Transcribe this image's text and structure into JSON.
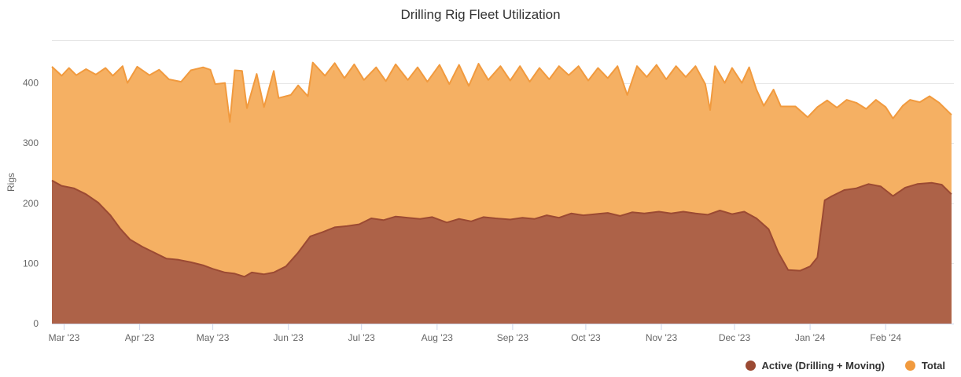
{
  "chart_data": {
    "type": "area",
    "title": "Drilling Rig Fleet Utilization",
    "ylabel": "Rigs",
    "xlabel": "",
    "ylim": [
      0,
      470
    ],
    "yticks": [
      0,
      100,
      200,
      300,
      400
    ],
    "xlim": [
      "2023-02-24",
      "2024-02-29"
    ],
    "xticks": [
      {
        "date": "2023-03-01",
        "label": "Mar '23"
      },
      {
        "date": "2023-04-01",
        "label": "Apr '23"
      },
      {
        "date": "2023-05-01",
        "label": "May '23"
      },
      {
        "date": "2023-06-01",
        "label": "Jun '23"
      },
      {
        "date": "2023-07-01",
        "label": "Jul '23"
      },
      {
        "date": "2023-08-01",
        "label": "Aug '23"
      },
      {
        "date": "2023-09-01",
        "label": "Sep '23"
      },
      {
        "date": "2023-10-01",
        "label": "Oct '23"
      },
      {
        "date": "2023-11-01",
        "label": "Nov '23"
      },
      {
        "date": "2023-12-01",
        "label": "Dec '23"
      },
      {
        "date": "2024-01-01",
        "label": "Jan '24"
      },
      {
        "date": "2024-02-01",
        "label": "Feb '24"
      }
    ],
    "grid": true,
    "legend_position": "bottom-right",
    "series": [
      {
        "name": "Total",
        "color": "#f19a3e",
        "points": [
          [
            "2023-02-24",
            427
          ],
          [
            "2023-02-28",
            412
          ],
          [
            "2023-03-03",
            425
          ],
          [
            "2023-03-06",
            413
          ],
          [
            "2023-03-10",
            423
          ],
          [
            "2023-03-14",
            414
          ],
          [
            "2023-03-18",
            425
          ],
          [
            "2023-03-21",
            412
          ],
          [
            "2023-03-25",
            428
          ],
          [
            "2023-03-27",
            400
          ],
          [
            "2023-03-31",
            427
          ],
          [
            "2023-04-05",
            413
          ],
          [
            "2023-04-09",
            422
          ],
          [
            "2023-04-13",
            406
          ],
          [
            "2023-04-18",
            402
          ],
          [
            "2023-04-22",
            421
          ],
          [
            "2023-04-27",
            426
          ],
          [
            "2023-04-30",
            422
          ],
          [
            "2023-05-02",
            398
          ],
          [
            "2023-05-06",
            400
          ],
          [
            "2023-05-08",
            335
          ],
          [
            "2023-05-10",
            421
          ],
          [
            "2023-05-13",
            420
          ],
          [
            "2023-05-15",
            358
          ],
          [
            "2023-05-19",
            415
          ],
          [
            "2023-05-22",
            360
          ],
          [
            "2023-05-26",
            420
          ],
          [
            "2023-05-28",
            375
          ],
          [
            "2023-06-02",
            380
          ],
          [
            "2023-06-05",
            396
          ],
          [
            "2023-06-09",
            378
          ],
          [
            "2023-06-11",
            434
          ],
          [
            "2023-06-16",
            412
          ],
          [
            "2023-06-20",
            433
          ],
          [
            "2023-06-24",
            408
          ],
          [
            "2023-06-28",
            431
          ],
          [
            "2023-07-02",
            405
          ],
          [
            "2023-07-07",
            426
          ],
          [
            "2023-07-11",
            403
          ],
          [
            "2023-07-15",
            431
          ],
          [
            "2023-07-20",
            405
          ],
          [
            "2023-07-24",
            426
          ],
          [
            "2023-07-28",
            402
          ],
          [
            "2023-08-02",
            430
          ],
          [
            "2023-08-06",
            398
          ],
          [
            "2023-08-10",
            430
          ],
          [
            "2023-08-14",
            395
          ],
          [
            "2023-08-18",
            432
          ],
          [
            "2023-08-22",
            405
          ],
          [
            "2023-08-27",
            428
          ],
          [
            "2023-08-31",
            404
          ],
          [
            "2023-09-04",
            428
          ],
          [
            "2023-09-08",
            402
          ],
          [
            "2023-09-12",
            425
          ],
          [
            "2023-09-16",
            406
          ],
          [
            "2023-09-20",
            428
          ],
          [
            "2023-09-24",
            413
          ],
          [
            "2023-09-28",
            428
          ],
          [
            "2023-10-02",
            404
          ],
          [
            "2023-10-06",
            425
          ],
          [
            "2023-10-10",
            408
          ],
          [
            "2023-10-14",
            428
          ],
          [
            "2023-10-18",
            380
          ],
          [
            "2023-10-22",
            428
          ],
          [
            "2023-10-26",
            410
          ],
          [
            "2023-10-30",
            430
          ],
          [
            "2023-11-03",
            406
          ],
          [
            "2023-11-07",
            428
          ],
          [
            "2023-11-11",
            410
          ],
          [
            "2023-11-15",
            428
          ],
          [
            "2023-11-19",
            398
          ],
          [
            "2023-11-21",
            355
          ],
          [
            "2023-11-23",
            428
          ],
          [
            "2023-11-27",
            400
          ],
          [
            "2023-11-30",
            425
          ],
          [
            "2023-12-04",
            400
          ],
          [
            "2023-12-07",
            426
          ],
          [
            "2023-12-10",
            389
          ],
          [
            "2023-12-13",
            362
          ],
          [
            "2023-12-17",
            389
          ],
          [
            "2023-12-20",
            361
          ],
          [
            "2023-12-26",
            361
          ],
          [
            "2023-12-31",
            343
          ],
          [
            "2024-01-04",
            360
          ],
          [
            "2024-01-08",
            371
          ],
          [
            "2024-01-12",
            359
          ],
          [
            "2024-01-16",
            372
          ],
          [
            "2024-01-20",
            367
          ],
          [
            "2024-01-24",
            357
          ],
          [
            "2024-01-28",
            372
          ],
          [
            "2024-02-01",
            360
          ],
          [
            "2024-02-04",
            341
          ],
          [
            "2024-02-08",
            362
          ],
          [
            "2024-02-11",
            372
          ],
          [
            "2024-02-15",
            368
          ],
          [
            "2024-02-19",
            378
          ],
          [
            "2024-02-23",
            367
          ],
          [
            "2024-02-28",
            347
          ]
        ]
      },
      {
        "name": "Active (Drilling + Moving)",
        "color": "#9b4a33",
        "points": [
          [
            "2023-02-24",
            238
          ],
          [
            "2023-02-28",
            229
          ],
          [
            "2023-03-05",
            225
          ],
          [
            "2023-03-10",
            215
          ],
          [
            "2023-03-15",
            201
          ],
          [
            "2023-03-20",
            180
          ],
          [
            "2023-03-24",
            158
          ],
          [
            "2023-03-28",
            140
          ],
          [
            "2023-04-02",
            128
          ],
          [
            "2023-04-07",
            118
          ],
          [
            "2023-04-12",
            108
          ],
          [
            "2023-04-17",
            106
          ],
          [
            "2023-04-22",
            102
          ],
          [
            "2023-04-27",
            97
          ],
          [
            "2023-05-01",
            91
          ],
          [
            "2023-05-06",
            85
          ],
          [
            "2023-05-10",
            83
          ],
          [
            "2023-05-14",
            78
          ],
          [
            "2023-05-17",
            85
          ],
          [
            "2023-05-22",
            82
          ],
          [
            "2023-05-26",
            85
          ],
          [
            "2023-05-31",
            95
          ],
          [
            "2023-06-05",
            118
          ],
          [
            "2023-06-10",
            145
          ],
          [
            "2023-06-15",
            152
          ],
          [
            "2023-06-20",
            160
          ],
          [
            "2023-06-25",
            162
          ],
          [
            "2023-06-30",
            165
          ],
          [
            "2023-07-05",
            175
          ],
          [
            "2023-07-10",
            172
          ],
          [
            "2023-07-15",
            178
          ],
          [
            "2023-07-20",
            176
          ],
          [
            "2023-07-25",
            174
          ],
          [
            "2023-07-30",
            177
          ],
          [
            "2023-08-05",
            168
          ],
          [
            "2023-08-10",
            174
          ],
          [
            "2023-08-15",
            170
          ],
          [
            "2023-08-20",
            177
          ],
          [
            "2023-08-25",
            175
          ],
          [
            "2023-08-31",
            173
          ],
          [
            "2023-09-05",
            176
          ],
          [
            "2023-09-10",
            174
          ],
          [
            "2023-09-15",
            180
          ],
          [
            "2023-09-20",
            176
          ],
          [
            "2023-09-25",
            183
          ],
          [
            "2023-09-30",
            180
          ],
          [
            "2023-10-05",
            182
          ],
          [
            "2023-10-10",
            184
          ],
          [
            "2023-10-15",
            179
          ],
          [
            "2023-10-20",
            185
          ],
          [
            "2023-10-25",
            183
          ],
          [
            "2023-10-31",
            186
          ],
          [
            "2023-11-05",
            183
          ],
          [
            "2023-11-10",
            186
          ],
          [
            "2023-11-15",
            183
          ],
          [
            "2023-11-20",
            181
          ],
          [
            "2023-11-25",
            188
          ],
          [
            "2023-11-30",
            182
          ],
          [
            "2023-12-05",
            186
          ],
          [
            "2023-12-10",
            175
          ],
          [
            "2023-12-15",
            157
          ],
          [
            "2023-12-19",
            118
          ],
          [
            "2023-12-23",
            89
          ],
          [
            "2023-12-28",
            88
          ],
          [
            "2024-01-01",
            95
          ],
          [
            "2024-01-04",
            110
          ],
          [
            "2024-01-07",
            205
          ],
          [
            "2024-01-10",
            212
          ],
          [
            "2024-01-15",
            222
          ],
          [
            "2024-01-20",
            225
          ],
          [
            "2024-01-25",
            232
          ],
          [
            "2024-01-30",
            228
          ],
          [
            "2024-02-04",
            212
          ],
          [
            "2024-02-09",
            226
          ],
          [
            "2024-02-14",
            232
          ],
          [
            "2024-02-20",
            234
          ],
          [
            "2024-02-24",
            231
          ],
          [
            "2024-02-28",
            215
          ]
        ]
      }
    ]
  }
}
